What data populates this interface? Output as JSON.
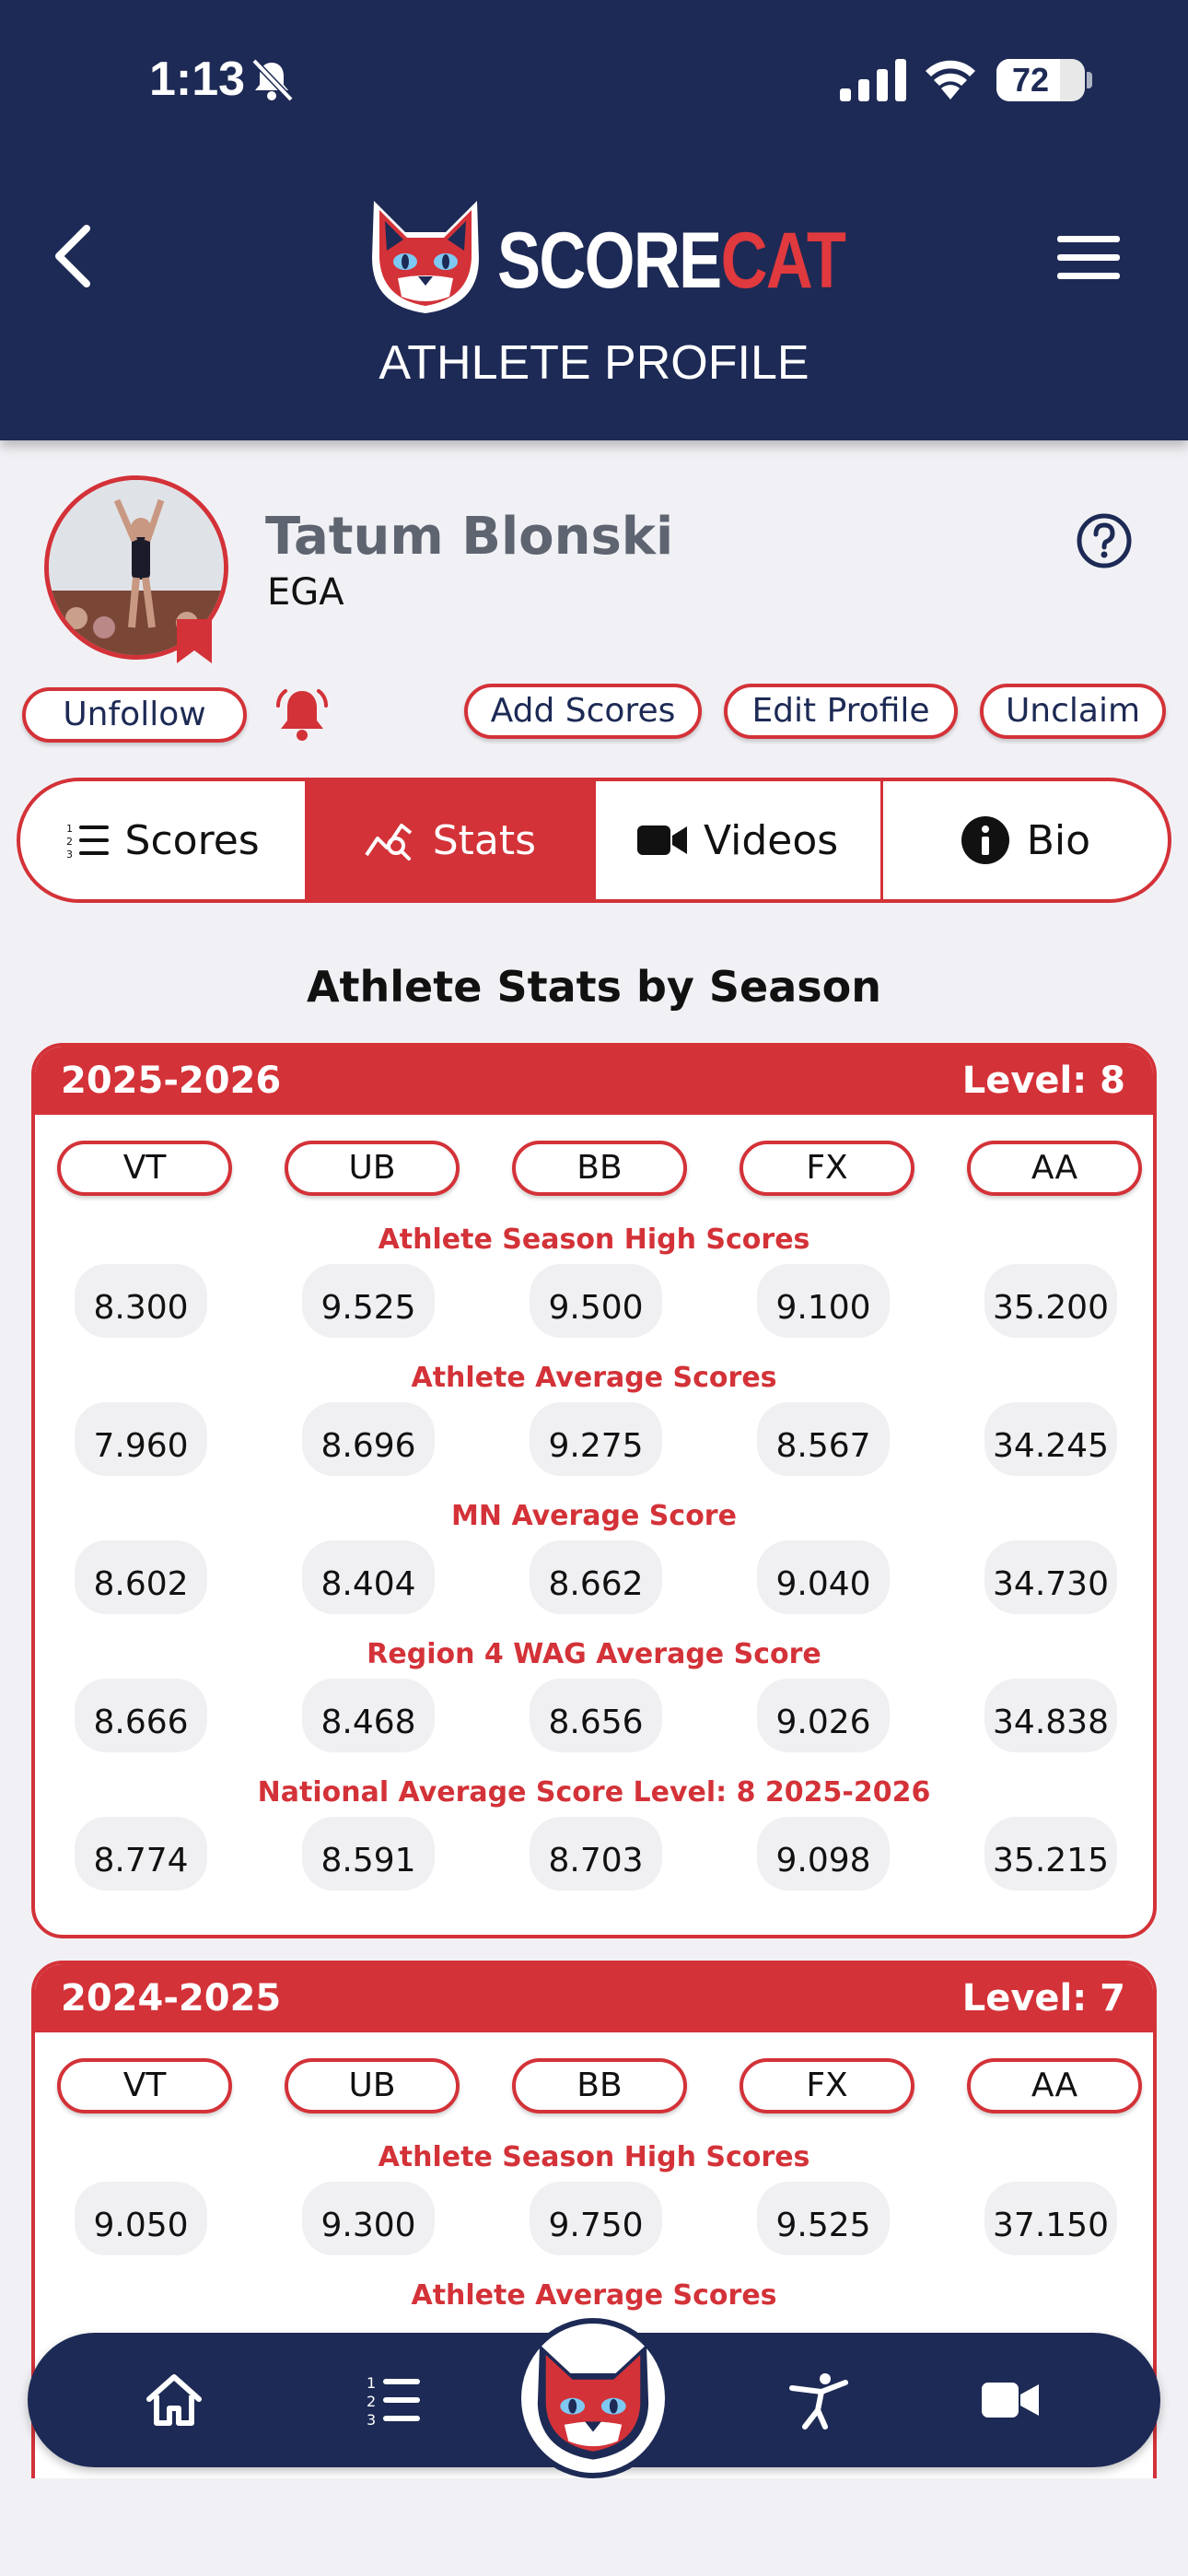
{
  "status_bar": {
    "time": "1:13",
    "battery": "72",
    "battery_level": 0.72
  },
  "header": {
    "brand_part1": "SCORE",
    "brand_part2": "CAT",
    "page_title": "ATHLETE PROFILE"
  },
  "profile": {
    "name": "Tatum Blonski",
    "gym": "EGA"
  },
  "actions": {
    "unfollow": "Unfollow",
    "add_scores": "Add Scores",
    "edit_profile": "Edit Profile",
    "unclaim": "Unclaim"
  },
  "tabs": [
    {
      "label": "Scores",
      "icon": "list-numbered-icon",
      "active": false
    },
    {
      "label": "Stats",
      "icon": "chart-search-icon",
      "active": true
    },
    {
      "label": "Videos",
      "icon": "video-camera-icon",
      "active": false
    },
    {
      "label": "Bio",
      "icon": "info-circle-icon",
      "active": false
    }
  ],
  "section_title": "Athlete Stats by Season",
  "events": [
    "VT",
    "UB",
    "BB",
    "FX",
    "AA"
  ],
  "seasons": [
    {
      "season": "2025-2026",
      "level": "Level: 8",
      "rows": [
        {
          "label": "Athlete Season High Scores",
          "values": [
            "8.300",
            "9.525",
            "9.500",
            "9.100",
            "35.200"
          ]
        },
        {
          "label": "Athlete Average Scores",
          "values": [
            "7.960",
            "8.696",
            "9.275",
            "8.567",
            "34.245"
          ]
        },
        {
          "label": "MN Average Score",
          "values": [
            "8.602",
            "8.404",
            "8.662",
            "9.040",
            "34.730"
          ]
        },
        {
          "label": "Region 4 WAG Average Score",
          "values": [
            "8.666",
            "8.468",
            "8.656",
            "9.026",
            "34.838"
          ]
        },
        {
          "label": "National Average Score Level: 8 2025-2026",
          "values": [
            "8.774",
            "8.591",
            "8.703",
            "9.098",
            "35.215"
          ]
        }
      ]
    },
    {
      "season": "2024-2025",
      "level": "Level: 7",
      "rows": [
        {
          "label": "Athlete Season High Scores",
          "values": [
            "9.050",
            "9.300",
            "9.750",
            "9.525",
            "37.150"
          ]
        },
        {
          "label": "Athlete Average Scores",
          "values": []
        }
      ]
    }
  ],
  "bottom_nav": [
    "home-icon",
    "list-numbered-icon",
    "scorecat-logo",
    "gymnast-icon",
    "video-camera-icon"
  ],
  "colors": {
    "navy": "#1d2a55",
    "red": "#d33238",
    "background": "#f1f1f5"
  }
}
